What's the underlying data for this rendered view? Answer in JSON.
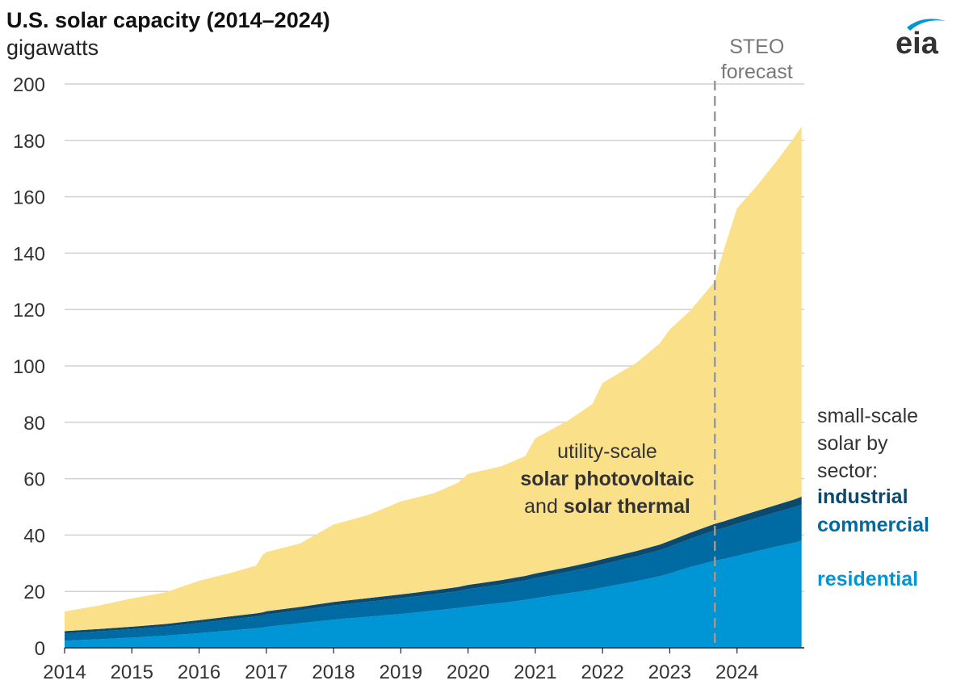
{
  "header": {
    "title": "U.S. solar capacity (2014–2024)",
    "unit": "gigawatts",
    "logo_text": "eia"
  },
  "colors": {
    "utility": "#fbe08a",
    "industrial": "#0b4a6e",
    "commercial": "#006aa3",
    "residential": "#0096d6",
    "grid": "#d0d0d0",
    "forecast_line": "#9a9a9a",
    "label_dark": "#333333",
    "label_gray": "#777777"
  },
  "annotations": {
    "forecast": [
      "STEO",
      "forecast"
    ],
    "utility_label": {
      "line1": "utility-scale",
      "line2": "solar photovoltaic",
      "line3_plain": "and ",
      "line3_bold": "solar thermal"
    },
    "small_scale_label": [
      "small-scale",
      "solar by",
      "sector:"
    ],
    "industrial_label": "industrial",
    "commercial_label": "commercial",
    "residential_label": "residential"
  },
  "chart_data": {
    "type": "area",
    "stacked": true,
    "title": "U.S. solar capacity (2014–2024)",
    "ylabel": "gigawatts",
    "xlabel": "",
    "ylim": [
      0,
      200
    ],
    "xlim": [
      2014,
      2025
    ],
    "yticks": [
      0,
      20,
      40,
      60,
      80,
      100,
      120,
      140,
      160,
      180,
      200
    ],
    "xticks": [
      "2014",
      "2015",
      "2016",
      "2017",
      "2018",
      "2019",
      "2020",
      "2021",
      "2022",
      "2023",
      "2024"
    ],
    "forecast_start": 2023.67,
    "x": [
      2014.0,
      2014.5,
      2015.0,
      2015.5,
      2016.0,
      2016.5,
      2016.85,
      2016.95,
      2017.0,
      2017.5,
      2018.0,
      2018.5,
      2019.0,
      2019.5,
      2019.85,
      2020.0,
      2020.5,
      2020.85,
      2021.0,
      2021.5,
      2021.85,
      2022.0,
      2022.5,
      2022.85,
      2023.0,
      2023.3,
      2023.67,
      2023.8,
      2024.0,
      2024.3,
      2024.6,
      2024.85,
      2024.96
    ],
    "series": [
      {
        "name": "residential",
        "label": "residential",
        "values": [
          2.5,
          3.0,
          3.6,
          4.3,
          5.2,
          6.2,
          6.9,
          7.2,
          7.4,
          8.7,
          10.0,
          11.0,
          12.0,
          13.2,
          14.1,
          14.6,
          15.9,
          17.0,
          17.6,
          19.4,
          20.7,
          21.4,
          23.6,
          25.4,
          26.4,
          28.6,
          30.9,
          31.5,
          32.6,
          34.3,
          36.0,
          37.3,
          38.0
        ]
      },
      {
        "name": "commercial",
        "label": "commercial",
        "values": [
          2.6,
          2.8,
          3.0,
          3.2,
          3.6,
          4.0,
          4.2,
          4.3,
          4.4,
          4.6,
          5.0,
          5.3,
          5.6,
          5.8,
          6.0,
          6.2,
          6.6,
          6.9,
          7.1,
          7.6,
          8.0,
          8.2,
          8.8,
          9.2,
          9.5,
          10.0,
          10.8,
          11.0,
          11.4,
          11.8,
          12.2,
          12.6,
          12.8
        ]
      },
      {
        "name": "industrial",
        "label": "industrial",
        "values": [
          0.8,
          0.85,
          0.9,
          0.95,
          1.0,
          1.05,
          1.1,
          1.1,
          1.15,
          1.2,
          1.25,
          1.3,
          1.35,
          1.4,
          1.45,
          1.5,
          1.55,
          1.6,
          1.65,
          1.7,
          1.8,
          1.85,
          1.9,
          2.0,
          2.05,
          2.2,
          2.3,
          2.35,
          2.4,
          2.5,
          2.6,
          2.7,
          2.8
        ]
      },
      {
        "name": "utility-scale solar photovoltaic and solar thermal",
        "label": "utility-scale solar photovoltaic and solar thermal",
        "values": [
          7.0,
          8.3,
          10.0,
          11.2,
          14.0,
          15.5,
          17.0,
          20.5,
          21.0,
          22.5,
          27.5,
          29.4,
          33.0,
          34.5,
          37.0,
          39.4,
          40.4,
          42.5,
          48.0,
          52.1,
          56.0,
          62.5,
          66.7,
          71.4,
          75.0,
          78.7,
          86.0,
          96.1,
          109.5,
          115.4,
          122.2,
          128.4,
          131.4
        ]
      }
    ]
  }
}
